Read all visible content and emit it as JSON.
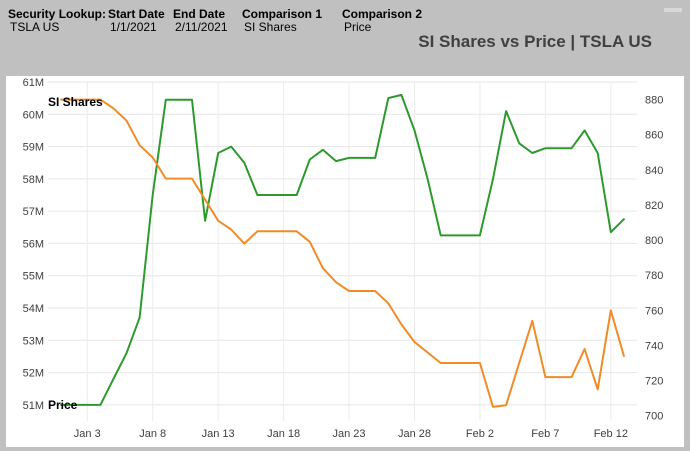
{
  "header": {
    "security_lookup": {
      "label": "Security Lookup:",
      "value": "TSLA US"
    },
    "start_date": {
      "label": "Start Date",
      "value": "1/1/2021"
    },
    "end_date": {
      "label": "End Date",
      "value": "2/11/2021"
    },
    "comparison1": {
      "label": "Comparison 1",
      "value": "SI Shares"
    },
    "comparison2": {
      "label": "Comparison 2",
      "value": "Price"
    },
    "title": "SI Shares vs Price | TSLA US"
  },
  "chart_data": {
    "type": "line",
    "title": "SI Shares vs Price | TSLA US",
    "xlabel": "",
    "ylabel": "",
    "x_ticks": [
      "Jan 3",
      "Jan 8",
      "Jan 13",
      "Jan 18",
      "Jan 23",
      "Jan 28",
      "Feb 2",
      "Feb 7",
      "Feb 12"
    ],
    "x_tick_dates": [
      "2021-01-03",
      "2021-01-08",
      "2021-01-13",
      "2021-01-18",
      "2021-01-23",
      "2021-01-28",
      "2021-02-02",
      "2021-02-07",
      "2021-02-12"
    ],
    "x_range": [
      "2020-12-31",
      "2021-02-14"
    ],
    "y_left": {
      "min": 50.5,
      "max": 61,
      "ticks": [
        "51M",
        "52M",
        "53M",
        "54M",
        "55M",
        "56M",
        "57M",
        "58M",
        "59M",
        "60M",
        "61M"
      ]
    },
    "y_right": {
      "min": 697,
      "max": 890,
      "ticks": [
        "700",
        "720",
        "740",
        "760",
        "780",
        "800",
        "820",
        "840",
        "860",
        "880"
      ]
    },
    "grid": true,
    "series": [
      {
        "name": "SI Shares",
        "axis": "left",
        "color": "#2e9a2e",
        "points": [
          [
            "2021-01-01",
            51.0
          ],
          [
            "2021-01-04",
            51.0
          ],
          [
            "2021-01-05",
            51.8
          ],
          [
            "2021-01-06",
            52.6
          ],
          [
            "2021-01-07",
            53.7
          ],
          [
            "2021-01-08",
            57.5
          ],
          [
            "2021-01-09",
            60.45
          ],
          [
            "2021-01-11",
            60.45
          ],
          [
            "2021-01-12",
            56.7
          ],
          [
            "2021-01-13",
            58.8
          ],
          [
            "2021-01-14",
            59.0
          ],
          [
            "2021-01-15",
            58.5
          ],
          [
            "2021-01-16",
            57.5
          ],
          [
            "2021-01-19",
            57.5
          ],
          [
            "2021-01-20",
            58.6
          ],
          [
            "2021-01-21",
            58.9
          ],
          [
            "2021-01-22",
            58.55
          ],
          [
            "2021-01-23",
            58.65
          ],
          [
            "2021-01-25",
            58.65
          ],
          [
            "2021-01-26",
            60.5
          ],
          [
            "2021-01-27",
            60.6
          ],
          [
            "2021-01-28",
            59.5
          ],
          [
            "2021-01-29",
            58.0
          ],
          [
            "2021-01-30",
            56.25
          ],
          [
            "2021-02-02",
            56.25
          ],
          [
            "2021-02-03",
            58.0
          ],
          [
            "2021-02-04",
            60.1
          ],
          [
            "2021-02-05",
            59.1
          ],
          [
            "2021-02-06",
            58.8
          ],
          [
            "2021-02-07",
            58.95
          ],
          [
            "2021-02-09",
            58.95
          ],
          [
            "2021-02-10",
            59.5
          ],
          [
            "2021-02-11",
            58.8
          ],
          [
            "2021-02-12",
            56.35
          ],
          [
            "2021-02-13",
            56.75
          ]
        ]
      },
      {
        "name": "Price",
        "axis": "right",
        "color": "#f08c28",
        "points": [
          [
            "2021-01-01",
            880
          ],
          [
            "2021-01-04",
            880
          ],
          [
            "2021-01-05",
            875
          ],
          [
            "2021-01-06",
            868
          ],
          [
            "2021-01-07",
            854
          ],
          [
            "2021-01-08",
            847
          ],
          [
            "2021-01-09",
            835
          ],
          [
            "2021-01-11",
            835
          ],
          [
            "2021-01-12",
            823
          ],
          [
            "2021-01-13",
            811
          ],
          [
            "2021-01-14",
            806
          ],
          [
            "2021-01-15",
            798
          ],
          [
            "2021-01-16",
            805
          ],
          [
            "2021-01-19",
            805
          ],
          [
            "2021-01-20",
            799
          ],
          [
            "2021-01-21",
            784
          ],
          [
            "2021-01-22",
            776
          ],
          [
            "2021-01-23",
            771
          ],
          [
            "2021-01-25",
            771
          ],
          [
            "2021-01-26",
            764
          ],
          [
            "2021-01-27",
            752
          ],
          [
            "2021-01-28",
            742
          ],
          [
            "2021-01-29",
            736
          ],
          [
            "2021-01-30",
            730
          ],
          [
            "2021-02-02",
            730
          ],
          [
            "2021-02-03",
            705
          ],
          [
            "2021-02-04",
            706
          ],
          [
            "2021-02-05",
            730
          ],
          [
            "2021-02-06",
            754
          ],
          [
            "2021-02-07",
            722
          ],
          [
            "2021-02-09",
            722
          ],
          [
            "2021-02-10",
            738
          ],
          [
            "2021-02-11",
            715
          ],
          [
            "2021-02-12",
            760
          ],
          [
            "2021-02-13",
            734
          ]
        ]
      }
    ]
  },
  "series_labels": {
    "top": "SI Shares",
    "bottom": "Price"
  }
}
